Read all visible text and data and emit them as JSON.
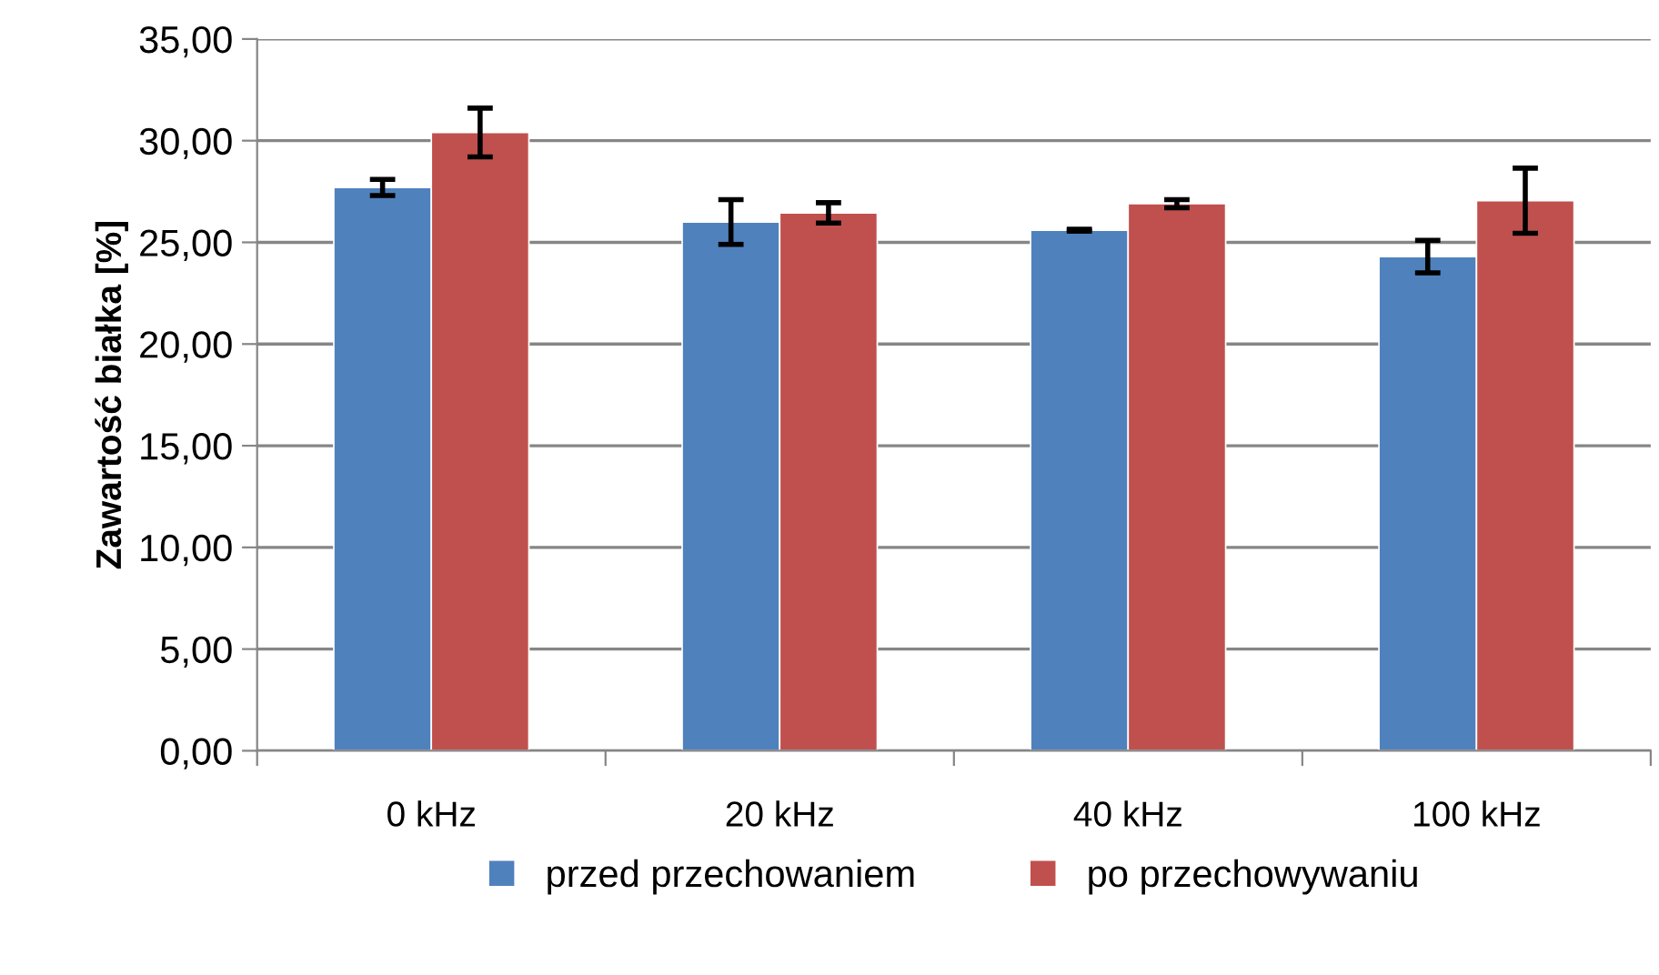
{
  "chart_data": {
    "type": "bar",
    "ylabel": "Zawartość białka [%]",
    "categories": [
      "0 kHz",
      "20 kHz",
      "40 kHz",
      "100 kHz"
    ],
    "series": [
      {
        "name": "przed przechowaniem",
        "color": "#4f81bd",
        "values": [
          27.7,
          26.0,
          25.6,
          24.3
        ],
        "errors": [
          0.4,
          1.1,
          0.05,
          0.8
        ]
      },
      {
        "name": "po przechowywaniu",
        "color": "#c0504d",
        "values": [
          30.4,
          26.45,
          26.9,
          27.05
        ],
        "errors": [
          1.2,
          0.5,
          0.2,
          1.6
        ]
      }
    ],
    "ylim": [
      0,
      35
    ],
    "yticks": [
      {
        "value": 0,
        "label": "0,00"
      },
      {
        "value": 5,
        "label": "5,00"
      },
      {
        "value": 10,
        "label": "10,00"
      },
      {
        "value": 15,
        "label": "15,00"
      },
      {
        "value": 20,
        "label": "20,00"
      },
      {
        "value": 25,
        "label": "25,00"
      },
      {
        "value": 30,
        "label": "30,00"
      },
      {
        "value": 35,
        "label": "35,00"
      }
    ],
    "grid": "y",
    "legend": "bottom"
  }
}
